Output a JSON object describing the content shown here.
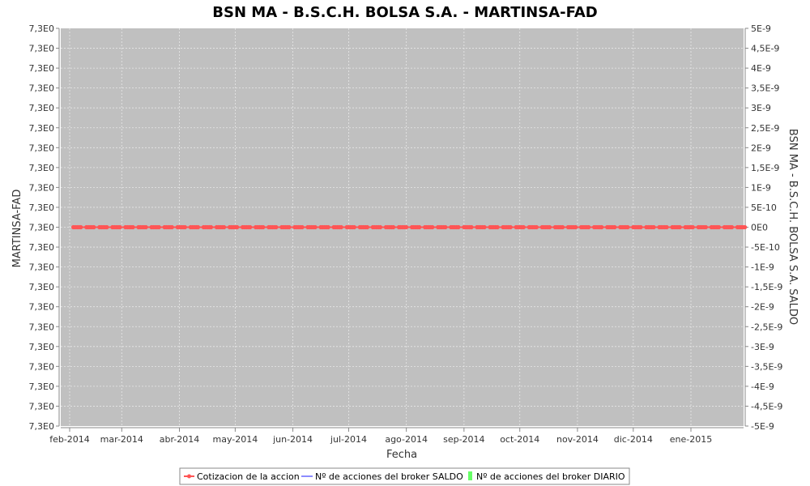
{
  "chart_data": {
    "type": "line",
    "title": "BSN MA - B.S.C.H. BOLSA S.A. - MARTINSA-FAD",
    "xlabel": "Fecha",
    "ylabel": "MARTINSA-FAD",
    "y2label": "BSN MA - B.S.C.H. BOLSA S.A. SALDO",
    "x_ticks": [
      "feb-2014",
      "mar-2014",
      "abr-2014",
      "may-2014",
      "jun-2014",
      "jul-2014",
      "ago-2014",
      "sep-2014",
      "oct-2014",
      "nov-2014",
      "dic-2014",
      "ene-2015"
    ],
    "y_ticks_left": [
      "7,3E0",
      "7,3E0",
      "7,3E0",
      "7,3E0",
      "7,3E0",
      "7,3E0",
      "7,3E0",
      "7,3E0",
      "7,3E0",
      "7,3E0",
      "7,3E0",
      "7,3E0",
      "7,3E0",
      "7,3E0",
      "7,3E0",
      "7,3E0",
      "7,3E0",
      "7,3E0",
      "7,3E0",
      "7,3E0",
      "7,3E0"
    ],
    "y_ticks_right": [
      "5E-9",
      "4,5E-9",
      "4E-9",
      "3,5E-9",
      "3E-9",
      "2,5E-9",
      "2E-9",
      "1,5E-9",
      "1E-9",
      "5E-10",
      "0E0",
      "-5E-10",
      "-1E-9",
      "-1,5E-9",
      "-2E-9",
      "-2,5E-9",
      "-3E-9",
      "-3,5E-9",
      "-4E-9",
      "-4,5E-9",
      "-5E-9"
    ],
    "y2lim": [
      -5e-09,
      5e-09
    ],
    "grid": true,
    "legend_position": "bottom",
    "series": [
      {
        "name": "Cotizacion de la accion",
        "color": "#ff5555",
        "x_start": "2014-02-03",
        "x_end": "2015-01-30",
        "y": 7.3,
        "marker": "dots"
      },
      {
        "name": "Nº de acciones del broker SALDO",
        "color": "#6666ff",
        "values": []
      },
      {
        "name": "Nº de acciones del broker DIARIO",
        "color": "#66ff66",
        "values": []
      }
    ]
  }
}
